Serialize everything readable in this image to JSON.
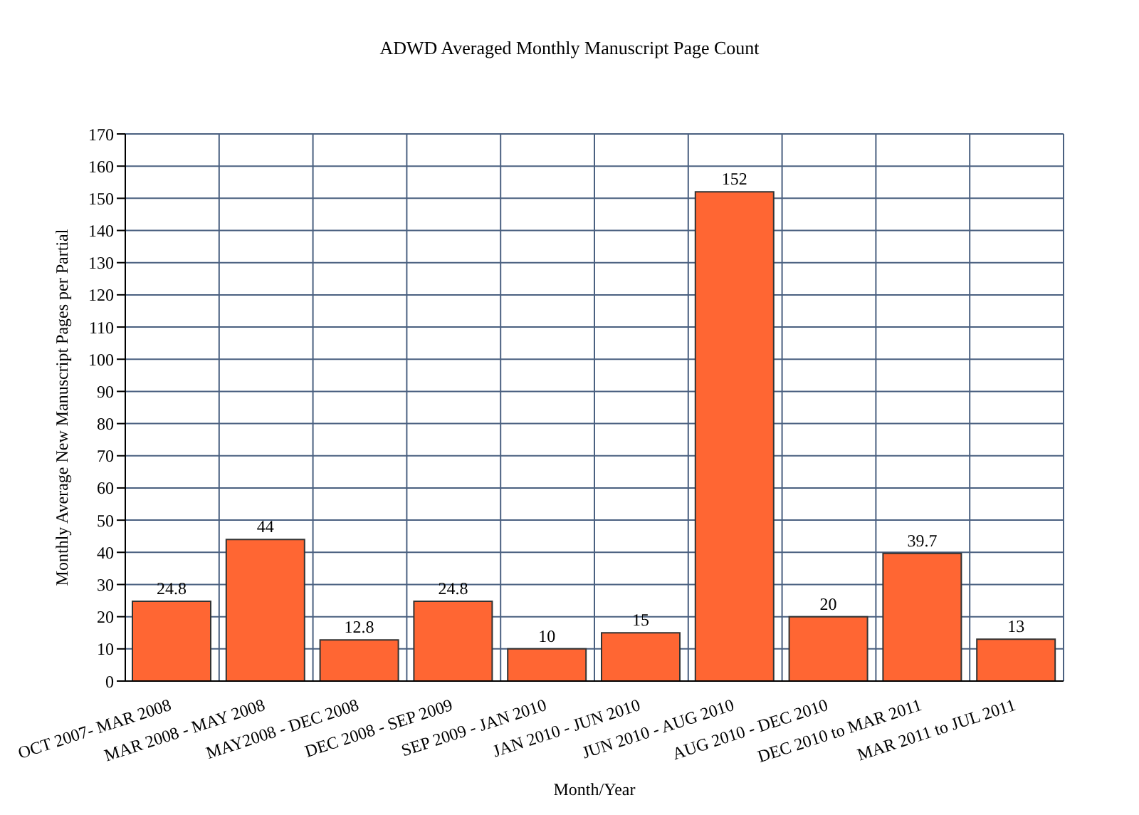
{
  "chart_data": {
    "type": "bar",
    "title": "ADWD Averaged Monthly Manuscript Page Count",
    "xlabel": "Month/Year",
    "ylabel": "Monthly Average New Manuscript Pages per Partial",
    "categories": [
      "OCT 2007- MAR 2008",
      "MAR 2008 - MAY 2008",
      "MAY2008 - DEC 2008",
      "DEC 2008 - SEP 2009",
      "SEP 2009 - JAN 2010",
      "JAN 2010 - JUN 2010",
      "JUN 2010 - AUG 2010",
      "AUG 2010 - DEC 2010",
      "DEC 2010 to MAR 2011",
      "MAR 2011 to JUL 2011"
    ],
    "values": [
      24.8,
      44,
      12.8,
      24.8,
      10,
      15,
      152,
      20,
      39.7,
      13
    ],
    "color": "#ff6633",
    "ylim": [
      0,
      170
    ],
    "yticks": [
      0,
      10,
      20,
      30,
      40,
      50,
      60,
      70,
      80,
      90,
      100,
      110,
      120,
      130,
      140,
      150,
      160,
      170
    ],
    "grid": true,
    "data_labels": true
  }
}
